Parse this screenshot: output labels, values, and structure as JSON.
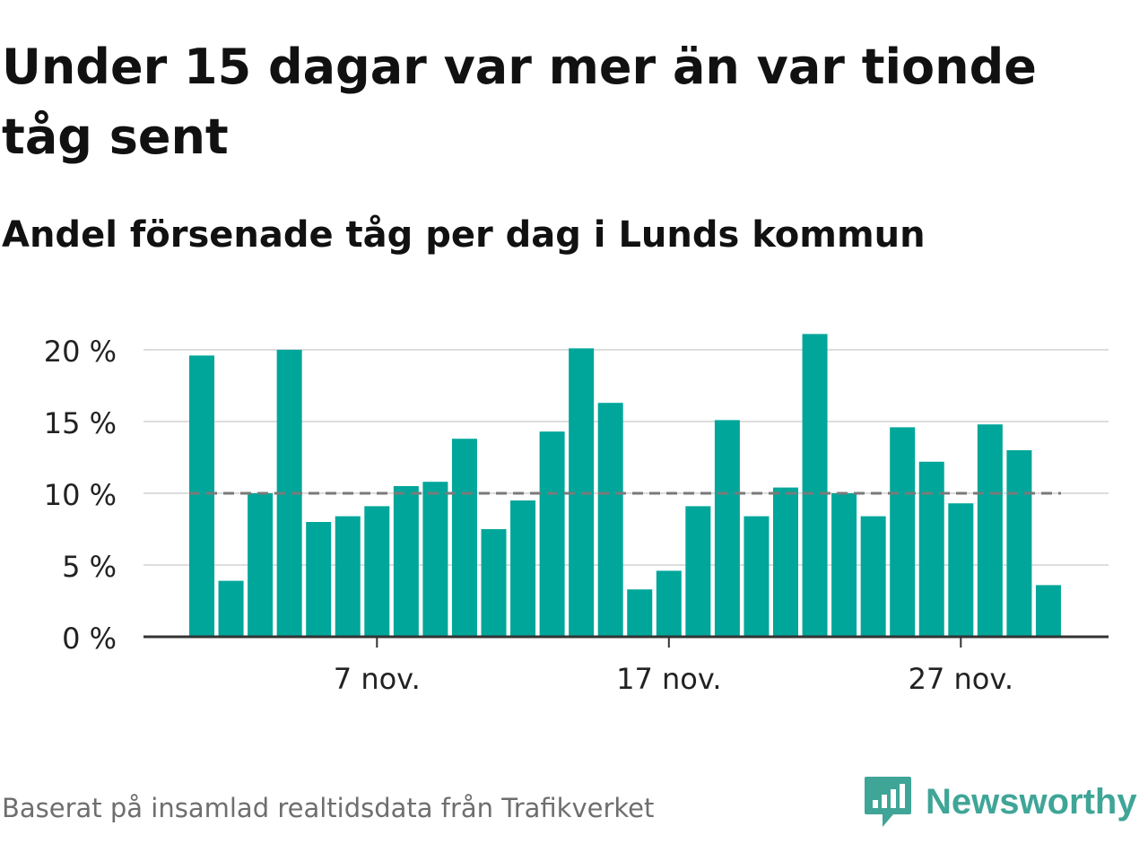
{
  "title": "Under 15 dagar var mer än var tionde tåg sent",
  "subtitle": "Andel försenade tåg per dag i Lunds kommun",
  "footer": "Baserat på insamlad realtidsdata från Trafikverket",
  "brand": {
    "name": "Newsworthy",
    "icon": "newsworthy-logo-icon",
    "color": "#3fa597"
  },
  "chart_data": {
    "type": "bar",
    "title": "Under 15 dagar var mer än var tionde tåg sent",
    "subtitle": "Andel försenade tåg per dag i Lunds kommun",
    "xlabel": "",
    "ylabel": "",
    "x": [
      1,
      2,
      3,
      4,
      5,
      6,
      7,
      8,
      9,
      10,
      11,
      12,
      13,
      14,
      15,
      16,
      17,
      18,
      19,
      20,
      21,
      22,
      23,
      24,
      25,
      26,
      27,
      28,
      29,
      30
    ],
    "values": [
      19.6,
      3.9,
      10.0,
      20.0,
      8.0,
      8.4,
      9.1,
      10.5,
      10.8,
      13.8,
      7.5,
      9.5,
      14.3,
      20.1,
      16.3,
      3.3,
      4.6,
      9.1,
      15.1,
      8.4,
      10.4,
      21.1,
      10.0,
      8.4,
      14.6,
      12.2,
      9.3,
      14.8,
      13.0,
      3.6
    ],
    "ylim": [
      0,
      21.5
    ],
    "yticks": [
      0,
      5,
      10,
      15,
      20
    ],
    "ytick_labels": [
      "0 %",
      "5 %",
      "10 %",
      "15 %",
      "20 %"
    ],
    "xtick_positions": [
      7,
      17,
      27
    ],
    "xtick_labels": [
      "7 nov.",
      "17 nov.",
      "27 nov."
    ],
    "reference_line": 10,
    "grid": true,
    "bar_color": "#00a69a",
    "reference_color": "#7a7a7a"
  }
}
